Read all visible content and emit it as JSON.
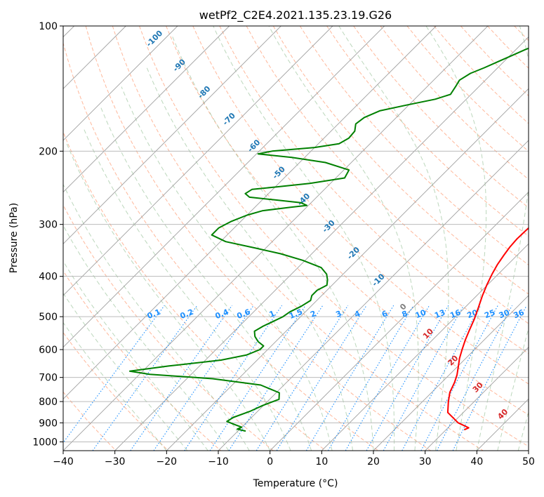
{
  "chart_data": {
    "type": "line",
    "title": "wetPf2_C2E4.2021.135.23.19.G26",
    "xlabel": "Temperature (°C)",
    "ylabel": "Pressure (hPa)",
    "xlim": [
      -40,
      50
    ],
    "ylim": [
      1050,
      100
    ],
    "yscale": "log",
    "xticks": [
      -40,
      -30,
      -20,
      -10,
      0,
      10,
      20,
      30,
      40,
      50
    ],
    "yticks": [
      100,
      200,
      300,
      400,
      500,
      600,
      700,
      800,
      900,
      1000
    ],
    "grid": true,
    "skew": true,
    "series": [
      {
        "color": "#ff0000",
        "points": [
          [
            33.5,
            935
          ],
          [
            34.0,
            925
          ],
          [
            31.0,
            900
          ],
          [
            27.0,
            850
          ],
          [
            25.0,
            800
          ],
          [
            23.5,
            760
          ],
          [
            22.5,
            720
          ],
          [
            21.5,
            690
          ],
          [
            20.2,
            660
          ],
          [
            18.8,
            630
          ],
          [
            17.6,
            600
          ],
          [
            16.4,
            570
          ],
          [
            15.3,
            540
          ],
          [
            14.0,
            505
          ],
          [
            12.6,
            475
          ],
          [
            11.1,
            445
          ],
          [
            9.9,
            420
          ],
          [
            8.8,
            395
          ],
          [
            8.0,
            375
          ],
          [
            7.4,
            355
          ],
          [
            7.0,
            340
          ],
          [
            6.8,
            325
          ],
          [
            6.9,
            310
          ],
          [
            7.1,
            295
          ],
          [
            7.1,
            278
          ],
          [
            6.9,
            262
          ],
          [
            6.6,
            247
          ],
          [
            6.3,
            233
          ],
          [
            5.8,
            219
          ],
          [
            5.1,
            205
          ],
          [
            4.3,
            192
          ],
          [
            3.4,
            180
          ],
          [
            2.6,
            170
          ],
          [
            2.0,
            162
          ],
          [
            1.4,
            155
          ],
          [
            0.3,
            148
          ],
          [
            -0.9,
            142
          ],
          [
            -1.7,
            136
          ],
          [
            -1.8,
            131
          ],
          [
            -1.5,
            127
          ],
          [
            -1.4,
            123
          ],
          [
            -1.7,
            119
          ],
          [
            -2.5,
            115
          ],
          [
            -3.0,
            111
          ],
          [
            -3.2,
            108
          ],
          [
            -3.2,
            104
          ],
          [
            -3.1,
            100
          ]
        ]
      },
      {
        "color": "#008000",
        "points": [
          [
            -8.5,
            942
          ],
          [
            -10.5,
            932
          ],
          [
            -10.0,
            922
          ],
          [
            -12.0,
            908
          ],
          [
            -14.0,
            893
          ],
          [
            -13.5,
            873
          ],
          [
            -11.5,
            845
          ],
          [
            -10.2,
            818
          ],
          [
            -8.2,
            790
          ],
          [
            -9.4,
            762
          ],
          [
            -14.5,
            730
          ],
          [
            -25.0,
            705
          ],
          [
            -38.0,
            688
          ],
          [
            -42.5,
            676
          ],
          [
            -36.0,
            657
          ],
          [
            -27.0,
            636
          ],
          [
            -23.0,
            618
          ],
          [
            -21.5,
            600
          ],
          [
            -21.5,
            588
          ],
          [
            -23.4,
            574
          ],
          [
            -25.0,
            558
          ],
          [
            -26.1,
            542
          ],
          [
            -25.4,
            527
          ],
          [
            -24.5,
            515
          ],
          [
            -23.4,
            500
          ],
          [
            -23.0,
            487
          ],
          [
            -21.9,
            472
          ],
          [
            -21.2,
            457
          ],
          [
            -21.9,
            445
          ],
          [
            -21.9,
            432
          ],
          [
            -21.0,
            420
          ],
          [
            -21.9,
            408
          ],
          [
            -23.2,
            395
          ],
          [
            -25.5,
            381
          ],
          [
            -30.5,
            366
          ],
          [
            -36.0,
            353
          ],
          [
            -42.0,
            342
          ],
          [
            -49.0,
            330
          ],
          [
            -53.0,
            318
          ],
          [
            -53.0,
            306
          ],
          [
            -51.8,
            295
          ],
          [
            -50.0,
            285
          ],
          [
            -47.8,
            278
          ],
          [
            -43.2,
            273
          ],
          [
            -40.3,
            270
          ],
          [
            -42.0,
            266
          ],
          [
            -47.5,
            262
          ],
          [
            -53.0,
            258
          ],
          [
            -54.5,
            253
          ],
          [
            -54.0,
            247
          ],
          [
            -50.0,
            244
          ],
          [
            -44.0,
            239
          ],
          [
            -38.3,
            232
          ],
          [
            -39.0,
            222
          ],
          [
            -45.0,
            213
          ],
          [
            -52.5,
            207
          ],
          [
            -59.7,
            203
          ],
          [
            -57.5,
            200
          ],
          [
            -50.0,
            196
          ],
          [
            -46.0,
            192
          ],
          [
            -45.2,
            186
          ],
          [
            -45.4,
            179
          ],
          [
            -46.6,
            172
          ],
          [
            -46.2,
            166
          ],
          [
            -44.5,
            160
          ],
          [
            -40.5,
            155
          ],
          [
            -36.0,
            150
          ],
          [
            -34.0,
            146
          ],
          [
            -34.5,
            140
          ],
          [
            -35.0,
            135
          ],
          [
            -34.2,
            130
          ],
          [
            -32.6,
            126
          ],
          [
            -31.2,
            122
          ],
          [
            -29.7,
            118
          ],
          [
            -28.2,
            114
          ],
          [
            -26.2,
            110
          ],
          [
            -24.6,
            106
          ],
          [
            -23.6,
            103
          ],
          [
            -23.5,
            100
          ]
        ]
      }
    ],
    "dry_adiabat_labels": [
      "-100",
      "-90",
      "-80",
      "-70",
      "-60",
      "-50",
      "-40",
      "-30",
      "-20",
      "-10",
      "0",
      "10",
      "20",
      "30",
      "40"
    ],
    "mixing_ratio_labels": [
      "0.1",
      "0.2",
      "0.4",
      "0.6",
      "1",
      "1.5",
      "2",
      "3",
      "4",
      "6",
      "8",
      "10",
      "13",
      "16",
      "20",
      "25",
      "30",
      "36"
    ],
    "colors": {
      "grid": "#b0b0b0",
      "isotherm": "#a0a0a0",
      "dry_adiabat": "#ffa07a",
      "moist_adiabat": "#8fbc8f",
      "mixing_ratio": "#1e90ff",
      "label_cold": "#1f77b4",
      "label_warm": "#d62728",
      "label_zero": "#808080"
    }
  }
}
